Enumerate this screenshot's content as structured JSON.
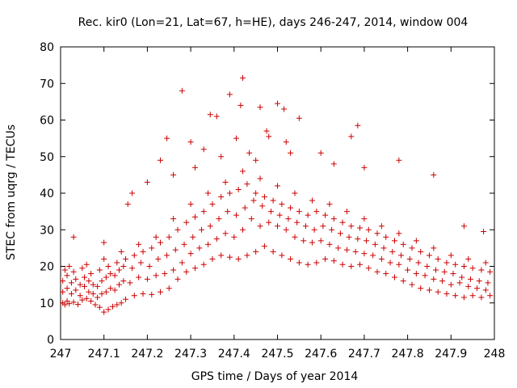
{
  "chart_data": {
    "type": "scatter",
    "title": "Rec. kir0 (Lon=21, Lat=67, h=HE), days 246-247, 2014, window 004",
    "xlabel": "GPS time / Days of year 2014",
    "ylabel": "STEC from uqrg / TECUs",
    "xlim": [
      247,
      248
    ],
    "ylim": [
      0,
      80
    ],
    "xticks": [
      "247",
      "247.1",
      "247.2",
      "247.3",
      "247.4",
      "247.5",
      "247.6",
      "247.7",
      "247.8",
      "247.9",
      "248"
    ],
    "yticks": [
      "0",
      "10",
      "20",
      "30",
      "40",
      "50",
      "60",
      "70",
      "80"
    ],
    "grid": false,
    "legend": "none",
    "marker_color": "#cc0000",
    "series": [
      {
        "points": [
          [
            247.005,
            10
          ],
          [
            247.01,
            9.5
          ],
          [
            247.015,
            10.5
          ],
          [
            247.02,
            9.8
          ],
          [
            247.03,
            10.2
          ],
          [
            247.04,
            9.6
          ],
          [
            247.05,
            10.8
          ],
          [
            247.06,
            11.2
          ],
          [
            247.07,
            10.5
          ],
          [
            247.08,
            9.5
          ],
          [
            247.09,
            8.8
          ],
          [
            247.1,
            7.5
          ],
          [
            247.11,
            8.2
          ],
          [
            247.12,
            9
          ],
          [
            247.13,
            9.5
          ],
          [
            247.14,
            10
          ],
          [
            247.15,
            11
          ],
          [
            247.17,
            12
          ],
          [
            247.19,
            12.5
          ],
          [
            247.21,
            12.3
          ],
          [
            247.23,
            13
          ],
          [
            247.25,
            14
          ],
          [
            247.27,
            16.5
          ],
          [
            247.29,
            18.5
          ],
          [
            247.31,
            19.5
          ],
          [
            247.33,
            20.5
          ],
          [
            247.35,
            22
          ],
          [
            247.37,
            23
          ],
          [
            247.39,
            22.5
          ],
          [
            247.41,
            22
          ],
          [
            247.43,
            23
          ],
          [
            247.45,
            24
          ],
          [
            247.47,
            25.5
          ],
          [
            247.49,
            24
          ],
          [
            247.51,
            23
          ],
          [
            247.53,
            22
          ],
          [
            247.55,
            21
          ],
          [
            247.57,
            20.5
          ],
          [
            247.59,
            21
          ],
          [
            247.61,
            22
          ],
          [
            247.63,
            21.5
          ],
          [
            247.65,
            20.5
          ],
          [
            247.67,
            20
          ],
          [
            247.69,
            20.5
          ],
          [
            247.71,
            19.5
          ],
          [
            247.73,
            18.5
          ],
          [
            247.75,
            18
          ],
          [
            247.77,
            17
          ],
          [
            247.79,
            16
          ],
          [
            247.81,
            15
          ],
          [
            247.83,
            14
          ],
          [
            247.85,
            13.5
          ],
          [
            247.87,
            13
          ],
          [
            247.89,
            12.5
          ],
          [
            247.91,
            12
          ],
          [
            247.93,
            11.5
          ],
          [
            247.95,
            12
          ],
          [
            247.97,
            11.5
          ],
          [
            247.99,
            12
          ],
          [
            247.005,
            13
          ],
          [
            247.015,
            14
          ],
          [
            247.025,
            12.5
          ],
          [
            247.035,
            13.5
          ],
          [
            247.045,
            12
          ],
          [
            247.055,
            14.5
          ],
          [
            247.065,
            13
          ],
          [
            247.075,
            12.5
          ],
          [
            247.085,
            11.5
          ],
          [
            247.095,
            12.5
          ],
          [
            247.105,
            13
          ],
          [
            247.115,
            14
          ],
          [
            247.125,
            13.5
          ],
          [
            247.135,
            15
          ],
          [
            247.145,
            16
          ],
          [
            247.16,
            15.5
          ],
          [
            247.18,
            17
          ],
          [
            247.2,
            16.5
          ],
          [
            247.22,
            17.5
          ],
          [
            247.24,
            18
          ],
          [
            247.26,
            19
          ],
          [
            247.28,
            21
          ],
          [
            247.3,
            23.5
          ],
          [
            247.32,
            25
          ],
          [
            247.34,
            26
          ],
          [
            247.36,
            27.5
          ],
          [
            247.38,
            29
          ],
          [
            247.4,
            28
          ],
          [
            247.42,
            30
          ],
          [
            247.44,
            33
          ],
          [
            247.46,
            31
          ],
          [
            247.48,
            32
          ],
          [
            247.5,
            31
          ],
          [
            247.52,
            30
          ],
          [
            247.54,
            28
          ],
          [
            247.56,
            27
          ],
          [
            247.58,
            26.5
          ],
          [
            247.6,
            27
          ],
          [
            247.62,
            26
          ],
          [
            247.64,
            25
          ],
          [
            247.66,
            24.5
          ],
          [
            247.68,
            24
          ],
          [
            247.7,
            23.5
          ],
          [
            247.72,
            23
          ],
          [
            247.74,
            22
          ],
          [
            247.76,
            21
          ],
          [
            247.78,
            20.5
          ],
          [
            247.8,
            19
          ],
          [
            247.82,
            18
          ],
          [
            247.84,
            17.5
          ],
          [
            247.86,
            16.5
          ],
          [
            247.88,
            16
          ],
          [
            247.9,
            15
          ],
          [
            247.92,
            15.5
          ],
          [
            247.94,
            14.5
          ],
          [
            247.96,
            14
          ],
          [
            247.98,
            13.5
          ],
          [
            247.005,
            16
          ],
          [
            247.015,
            17.5
          ],
          [
            247.025,
            15.5
          ],
          [
            247.035,
            16.5
          ],
          [
            247.045,
            15
          ],
          [
            247.055,
            17
          ],
          [
            247.065,
            16
          ],
          [
            247.075,
            15
          ],
          [
            247.085,
            14.5
          ],
          [
            247.095,
            16
          ],
          [
            247.105,
            17
          ],
          [
            247.115,
            18
          ],
          [
            247.125,
            17.5
          ],
          [
            247.135,
            19
          ],
          [
            247.145,
            20
          ],
          [
            247.165,
            19.5
          ],
          [
            247.185,
            21
          ],
          [
            247.205,
            20
          ],
          [
            247.225,
            22
          ],
          [
            247.245,
            23
          ],
          [
            247.265,
            24.5
          ],
          [
            247.285,
            26
          ],
          [
            247.305,
            28
          ],
          [
            247.325,
            30
          ],
          [
            247.345,
            31
          ],
          [
            247.365,
            33
          ],
          [
            247.385,
            35
          ],
          [
            247.405,
            34
          ],
          [
            247.425,
            36
          ],
          [
            247.445,
            38
          ],
          [
            247.465,
            36.5
          ],
          [
            247.485,
            35
          ],
          [
            247.505,
            34
          ],
          [
            247.525,
            33
          ],
          [
            247.545,
            32
          ],
          [
            247.565,
            31
          ],
          [
            247.585,
            30
          ],
          [
            247.605,
            31
          ],
          [
            247.625,
            30
          ],
          [
            247.645,
            29
          ],
          [
            247.665,
            28
          ],
          [
            247.685,
            27.5
          ],
          [
            247.705,
            27
          ],
          [
            247.725,
            26
          ],
          [
            247.745,
            25
          ],
          [
            247.765,
            24
          ],
          [
            247.785,
            23
          ],
          [
            247.805,
            22
          ],
          [
            247.825,
            21
          ],
          [
            247.845,
            20
          ],
          [
            247.865,
            19
          ],
          [
            247.885,
            18.5
          ],
          [
            247.905,
            18
          ],
          [
            247.925,
            17
          ],
          [
            247.945,
            16.5
          ],
          [
            247.965,
            16
          ],
          [
            247.985,
            15.5
          ],
          [
            247.01,
            19
          ],
          [
            247.03,
            18.5
          ],
          [
            247.05,
            19.5
          ],
          [
            247.07,
            18
          ],
          [
            247.09,
            19
          ],
          [
            247.11,
            20
          ],
          [
            247.13,
            21
          ],
          [
            247.15,
            22
          ],
          [
            247.17,
            23
          ],
          [
            247.19,
            24
          ],
          [
            247.21,
            25
          ],
          [
            247.23,
            26.5
          ],
          [
            247.25,
            28
          ],
          [
            247.27,
            30
          ],
          [
            247.29,
            32
          ],
          [
            247.31,
            33.5
          ],
          [
            247.33,
            35
          ],
          [
            247.35,
            37
          ],
          [
            247.37,
            39
          ],
          [
            247.39,
            40
          ],
          [
            247.41,
            41
          ],
          [
            247.43,
            42.5
          ],
          [
            247.45,
            40
          ],
          [
            247.47,
            39
          ],
          [
            247.49,
            38
          ],
          [
            247.51,
            37
          ],
          [
            247.53,
            36
          ],
          [
            247.55,
            35
          ],
          [
            247.57,
            34
          ],
          [
            247.59,
            35
          ],
          [
            247.61,
            34
          ],
          [
            247.63,
            33
          ],
          [
            247.65,
            32
          ],
          [
            247.67,
            31
          ],
          [
            247.69,
            30.5
          ],
          [
            247.71,
            30
          ],
          [
            247.73,
            29
          ],
          [
            247.75,
            28
          ],
          [
            247.77,
            27
          ],
          [
            247.79,
            26
          ],
          [
            247.81,
            25
          ],
          [
            247.83,
            24
          ],
          [
            247.85,
            23
          ],
          [
            247.87,
            22
          ],
          [
            247.89,
            21
          ],
          [
            247.91,
            20.5
          ],
          [
            247.93,
            20
          ],
          [
            247.95,
            19.5
          ],
          [
            247.97,
            19
          ],
          [
            247.99,
            18.5
          ],
          [
            247.02,
            20
          ],
          [
            247.06,
            20.5
          ],
          [
            247.1,
            22
          ],
          [
            247.14,
            24
          ],
          [
            247.18,
            26
          ],
          [
            247.22,
            28
          ],
          [
            247.26,
            33
          ],
          [
            247.3,
            37
          ],
          [
            247.34,
            40
          ],
          [
            247.38,
            43
          ],
          [
            247.42,
            46
          ],
          [
            247.46,
            44
          ],
          [
            247.5,
            42
          ],
          [
            247.54,
            40
          ],
          [
            247.58,
            38
          ],
          [
            247.62,
            37
          ],
          [
            247.66,
            35
          ],
          [
            247.7,
            33
          ],
          [
            247.74,
            31
          ],
          [
            247.78,
            29
          ],
          [
            247.82,
            27
          ],
          [
            247.86,
            25
          ],
          [
            247.9,
            23
          ],
          [
            247.94,
            22
          ],
          [
            247.98,
            21
          ],
          [
            247.03,
            28
          ],
          [
            247.1,
            26.5
          ],
          [
            247.155,
            37
          ],
          [
            247.165,
            40
          ],
          [
            247.2,
            43
          ],
          [
            247.23,
            49
          ],
          [
            247.245,
            55
          ],
          [
            247.26,
            45
          ],
          [
            247.28,
            68
          ],
          [
            247.3,
            54
          ],
          [
            247.31,
            47
          ],
          [
            247.33,
            52
          ],
          [
            247.345,
            61.5
          ],
          [
            247.36,
            61
          ],
          [
            247.37,
            50
          ],
          [
            247.39,
            67
          ],
          [
            247.405,
            55
          ],
          [
            247.415,
            64
          ],
          [
            247.42,
            71.5
          ],
          [
            247.435,
            51
          ],
          [
            247.45,
            49
          ],
          [
            247.46,
            63.5
          ],
          [
            247.475,
            57
          ],
          [
            247.48,
            55.5
          ],
          [
            247.5,
            64.5
          ],
          [
            247.515,
            63
          ],
          [
            247.52,
            54
          ],
          [
            247.53,
            51
          ],
          [
            247.55,
            60.5
          ],
          [
            247.6,
            51
          ],
          [
            247.63,
            48
          ],
          [
            247.67,
            55.5
          ],
          [
            247.685,
            58.5
          ],
          [
            247.7,
            47
          ],
          [
            247.78,
            49
          ],
          [
            247.86,
            45
          ],
          [
            247.93,
            31
          ],
          [
            247.975,
            29.5
          ]
        ]
      }
    ]
  }
}
